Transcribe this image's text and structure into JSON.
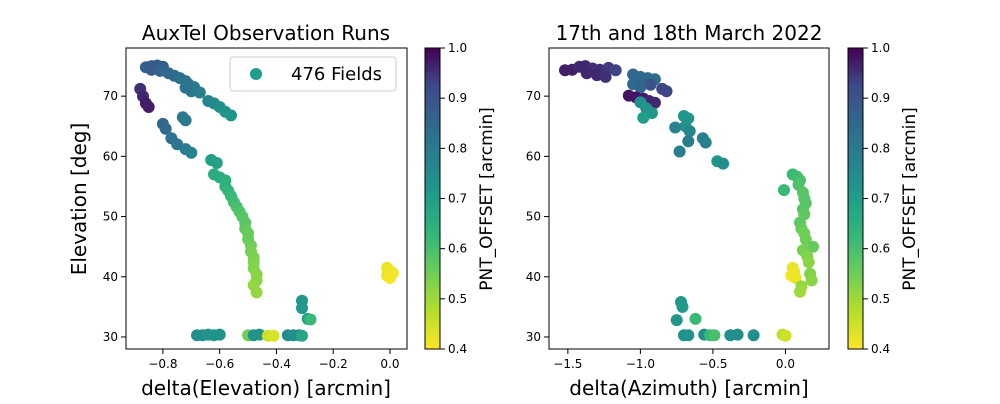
{
  "chart_data": [
    {
      "type": "scatter",
      "title": "AuxTel Observation Runs",
      "xlabel": "delta(Elevation) [arcmin]",
      "ylabel": "Elevation [deg]",
      "xlim": [
        -0.93,
        0.06
      ],
      "ylim": [
        28,
        78
      ],
      "xticks": [
        -0.8,
        -0.6,
        -0.4,
        -0.2,
        0.0
      ],
      "xtick_labels": [
        "−0.8",
        "−0.6",
        "−0.4",
        "−0.2",
        "0.0"
      ],
      "yticks": [
        30,
        40,
        50,
        60,
        70
      ],
      "ytick_labels": [
        "30",
        "40",
        "50",
        "60",
        "70"
      ],
      "grid": false,
      "legend": {
        "label": "476 Fields",
        "placement": "top-right"
      },
      "colorbar": {
        "label": "PNT_OFFSET [arcmin]",
        "range": [
          0.4,
          1.0
        ],
        "ticks": [
          "0.4",
          "0.5",
          "0.6",
          "0.7",
          "0.8",
          "0.9",
          "1.0"
        ],
        "colormap": "viridis_r"
      },
      "points": [
        [
          -0.86,
          74.8,
          0.87
        ],
        [
          -0.84,
          75.0,
          0.88
        ],
        [
          -0.82,
          75.1,
          0.89
        ],
        [
          -0.8,
          74.9,
          0.88
        ],
        [
          -0.84,
          74.4,
          0.88
        ],
        [
          -0.81,
          74.2,
          0.86
        ],
        [
          -0.78,
          73.8,
          0.85
        ],
        [
          -0.76,
          73.4,
          0.84
        ],
        [
          -0.74,
          73.0,
          0.83
        ],
        [
          -0.72,
          72.5,
          0.82
        ],
        [
          -0.71,
          72.0,
          0.81
        ],
        [
          -0.69,
          71.5,
          0.8
        ],
        [
          -0.7,
          70.8,
          0.8
        ],
        [
          -0.67,
          70.6,
          0.79
        ],
        [
          -0.72,
          71.4,
          0.82
        ],
        [
          -0.88,
          71.2,
          0.95
        ],
        [
          -0.87,
          70.0,
          0.96
        ],
        [
          -0.86,
          68.8,
          0.97
        ],
        [
          -0.85,
          68.2,
          0.97
        ],
        [
          -0.64,
          69.2,
          0.77
        ],
        [
          -0.62,
          68.8,
          0.76
        ],
        [
          -0.6,
          68.2,
          0.74
        ],
        [
          -0.58,
          67.4,
          0.73
        ],
        [
          -0.56,
          66.8,
          0.72
        ],
        [
          -0.73,
          66.5,
          0.8
        ],
        [
          -0.72,
          66.0,
          0.8
        ],
        [
          -0.8,
          65.4,
          0.85
        ],
        [
          -0.79,
          64.6,
          0.84
        ],
        [
          -0.77,
          63.0,
          0.82
        ],
        [
          -0.75,
          62.0,
          0.81
        ],
        [
          -0.72,
          61.2,
          0.79
        ],
        [
          -0.7,
          60.6,
          0.78
        ],
        [
          -0.63,
          59.4,
          0.7
        ],
        [
          -0.61,
          58.9,
          0.69
        ],
        [
          -0.62,
          57.0,
          0.66
        ],
        [
          -0.6,
          56.5,
          0.66
        ],
        [
          -0.58,
          56.0,
          0.65
        ],
        [
          -0.58,
          55.0,
          0.64
        ],
        [
          -0.57,
          54.3,
          0.63
        ],
        [
          -0.56,
          53.4,
          0.62
        ],
        [
          -0.55,
          52.4,
          0.61
        ],
        [
          -0.54,
          51.6,
          0.6
        ],
        [
          -0.53,
          50.8,
          0.59
        ],
        [
          -0.52,
          50.0,
          0.58
        ],
        [
          -0.51,
          49.0,
          0.58
        ],
        [
          -0.51,
          48.0,
          0.57
        ],
        [
          -0.5,
          47.2,
          0.56
        ],
        [
          -0.5,
          46.2,
          0.56
        ],
        [
          -0.49,
          45.2,
          0.55
        ],
        [
          -0.49,
          44.2,
          0.54
        ],
        [
          -0.48,
          43.2,
          0.54
        ],
        [
          -0.48,
          42.4,
          0.53
        ],
        [
          -0.48,
          41.4,
          0.53
        ],
        [
          -0.47,
          40.4,
          0.52
        ],
        [
          -0.47,
          39.4,
          0.52
        ],
        [
          -0.48,
          38.6,
          0.51
        ],
        [
          -0.47,
          37.4,
          0.51
        ],
        [
          -0.68,
          30.3,
          0.74
        ],
        [
          -0.66,
          30.3,
          0.74
        ],
        [
          -0.64,
          30.4,
          0.73
        ],
        [
          -0.62,
          30.3,
          0.73
        ],
        [
          -0.6,
          30.4,
          0.73
        ],
        [
          -0.5,
          30.3,
          0.55
        ],
        [
          -0.48,
          30.3,
          0.73
        ],
        [
          -0.46,
          30.4,
          0.73
        ],
        [
          -0.43,
          30.2,
          0.45
        ],
        [
          -0.41,
          30.2,
          0.44
        ],
        [
          -0.36,
          30.3,
          0.74
        ],
        [
          -0.34,
          30.3,
          0.74
        ],
        [
          -0.32,
          30.3,
          0.74
        ],
        [
          -0.31,
          30.2,
          0.68
        ],
        [
          -0.31,
          36.0,
          0.72
        ],
        [
          -0.31,
          34.8,
          0.71
        ],
        [
          -0.29,
          33.0,
          0.7
        ],
        [
          -0.28,
          32.9,
          0.62
        ],
        [
          -0.01,
          41.5,
          0.42
        ],
        [
          0.0,
          41.0,
          0.42
        ],
        [
          0.01,
          40.6,
          0.41
        ],
        [
          -0.01,
          40.2,
          0.42
        ],
        [
          0.0,
          39.8,
          0.41
        ]
      ]
    },
    {
      "type": "scatter",
      "title": "17th and 18th March 2022",
      "xlabel": "delta(Azimuth) [arcmin]",
      "ylabel": "",
      "xlim": [
        -1.63,
        0.3
      ],
      "ylim": [
        28,
        78
      ],
      "xticks": [
        -1.5,
        -1.0,
        -0.5,
        0.0
      ],
      "xtick_labels": [
        "−1.5",
        "−1.0",
        "−0.5",
        "0.0"
      ],
      "yticks": [
        30,
        40,
        50,
        60,
        70
      ],
      "ytick_labels": [
        "30",
        "40",
        "50",
        "60",
        "70"
      ],
      "grid": false,
      "colorbar": {
        "label": "PNT_OFFSET [arcmin]",
        "range": [
          0.4,
          1.0
        ],
        "ticks": [
          "0.4",
          "0.5",
          "0.6",
          "0.7",
          "0.8",
          "0.9",
          "1.0"
        ],
        "colormap": "viridis_r"
      },
      "points": [
        [
          -1.52,
          74.3,
          0.97
        ],
        [
          -1.47,
          74.4,
          0.97
        ],
        [
          -1.42,
          74.9,
          0.96
        ],
        [
          -1.38,
          75.0,
          0.96
        ],
        [
          -1.33,
          74.6,
          0.95
        ],
        [
          -1.28,
          74.4,
          0.95
        ],
        [
          -1.22,
          74.7,
          0.94
        ],
        [
          -1.17,
          74.3,
          0.93
        ],
        [
          -1.37,
          73.8,
          0.96
        ],
        [
          -1.3,
          73.5,
          0.96
        ],
        [
          -1.24,
          73.2,
          0.95
        ],
        [
          -1.05,
          73.6,
          0.85
        ],
        [
          -1.0,
          73.2,
          0.85
        ],
        [
          -0.95,
          73.0,
          0.84
        ],
        [
          -0.9,
          72.8,
          0.84
        ],
        [
          -1.05,
          72.0,
          0.85
        ],
        [
          -1.0,
          71.5,
          0.86
        ],
        [
          -0.93,
          71.9,
          0.9
        ],
        [
          -0.85,
          71.2,
          0.93
        ],
        [
          -0.82,
          70.8,
          0.93
        ],
        [
          -1.08,
          70.1,
          0.98
        ],
        [
          -1.03,
          69.8,
          0.98
        ],
        [
          -0.98,
          69.6,
          0.97
        ],
        [
          -0.94,
          69.2,
          0.96
        ],
        [
          -0.9,
          68.9,
          0.96
        ],
        [
          -1.0,
          69.0,
          0.74
        ],
        [
          -0.96,
          68.0,
          0.73
        ],
        [
          -0.92,
          67.2,
          0.72
        ],
        [
          -0.98,
          66.4,
          0.7
        ],
        [
          -0.7,
          66.7,
          0.72
        ],
        [
          -0.67,
          66.3,
          0.72
        ],
        [
          -0.69,
          65.0,
          0.73
        ],
        [
          -0.76,
          64.8,
          0.77
        ],
        [
          -0.66,
          64.2,
          0.76
        ],
        [
          -0.57,
          63.0,
          0.78
        ],
        [
          -0.55,
          62.3,
          0.78
        ],
        [
          -0.67,
          62.5,
          0.79
        ],
        [
          -0.73,
          60.8,
          0.79
        ],
        [
          -0.47,
          59.2,
          0.72
        ],
        [
          -0.43,
          58.8,
          0.74
        ],
        [
          0.05,
          57.0,
          0.62
        ],
        [
          0.08,
          56.6,
          0.61
        ],
        [
          0.1,
          56.0,
          0.6
        ],
        [
          0.09,
          55.3,
          0.59
        ],
        [
          -0.01,
          54.4,
          0.62
        ],
        [
          0.12,
          54.0,
          0.58
        ],
        [
          0.13,
          53.0,
          0.58
        ],
        [
          0.14,
          52.2,
          0.58
        ],
        [
          0.12,
          51.2,
          0.58
        ],
        [
          0.13,
          50.4,
          0.57
        ],
        [
          0.1,
          49.0,
          0.57
        ],
        [
          0.11,
          48.0,
          0.56
        ],
        [
          0.13,
          47.2,
          0.55
        ],
        [
          0.14,
          46.2,
          0.55
        ],
        [
          0.19,
          45.0,
          0.56
        ],
        [
          0.12,
          44.4,
          0.54
        ],
        [
          0.15,
          43.4,
          0.53
        ],
        [
          0.16,
          42.4,
          0.52
        ],
        [
          0.05,
          41.5,
          0.42
        ],
        [
          0.06,
          40.8,
          0.42
        ],
        [
          0.04,
          40.2,
          0.41
        ],
        [
          0.07,
          39.8,
          0.42
        ],
        [
          0.17,
          40.5,
          0.53
        ],
        [
          0.18,
          39.4,
          0.52
        ],
        [
          0.11,
          38.4,
          0.51
        ],
        [
          0.1,
          37.5,
          0.5
        ],
        [
          -0.72,
          35.8,
          0.72
        ],
        [
          -0.71,
          35.0,
          0.71
        ],
        [
          -0.75,
          32.8,
          0.72
        ],
        [
          -0.62,
          33.0,
          0.62
        ],
        [
          -0.7,
          30.3,
          0.74
        ],
        [
          -0.67,
          30.3,
          0.73
        ],
        [
          -0.56,
          30.4,
          0.74
        ],
        [
          -0.52,
          30.3,
          0.62
        ],
        [
          -0.49,
          30.3,
          0.6
        ],
        [
          -0.38,
          30.3,
          0.74
        ],
        [
          -0.33,
          30.4,
          0.74
        ],
        [
          -0.22,
          30.3,
          0.74
        ],
        [
          -0.02,
          30.4,
          0.47
        ],
        [
          0.0,
          30.2,
          0.45
        ]
      ]
    }
  ]
}
